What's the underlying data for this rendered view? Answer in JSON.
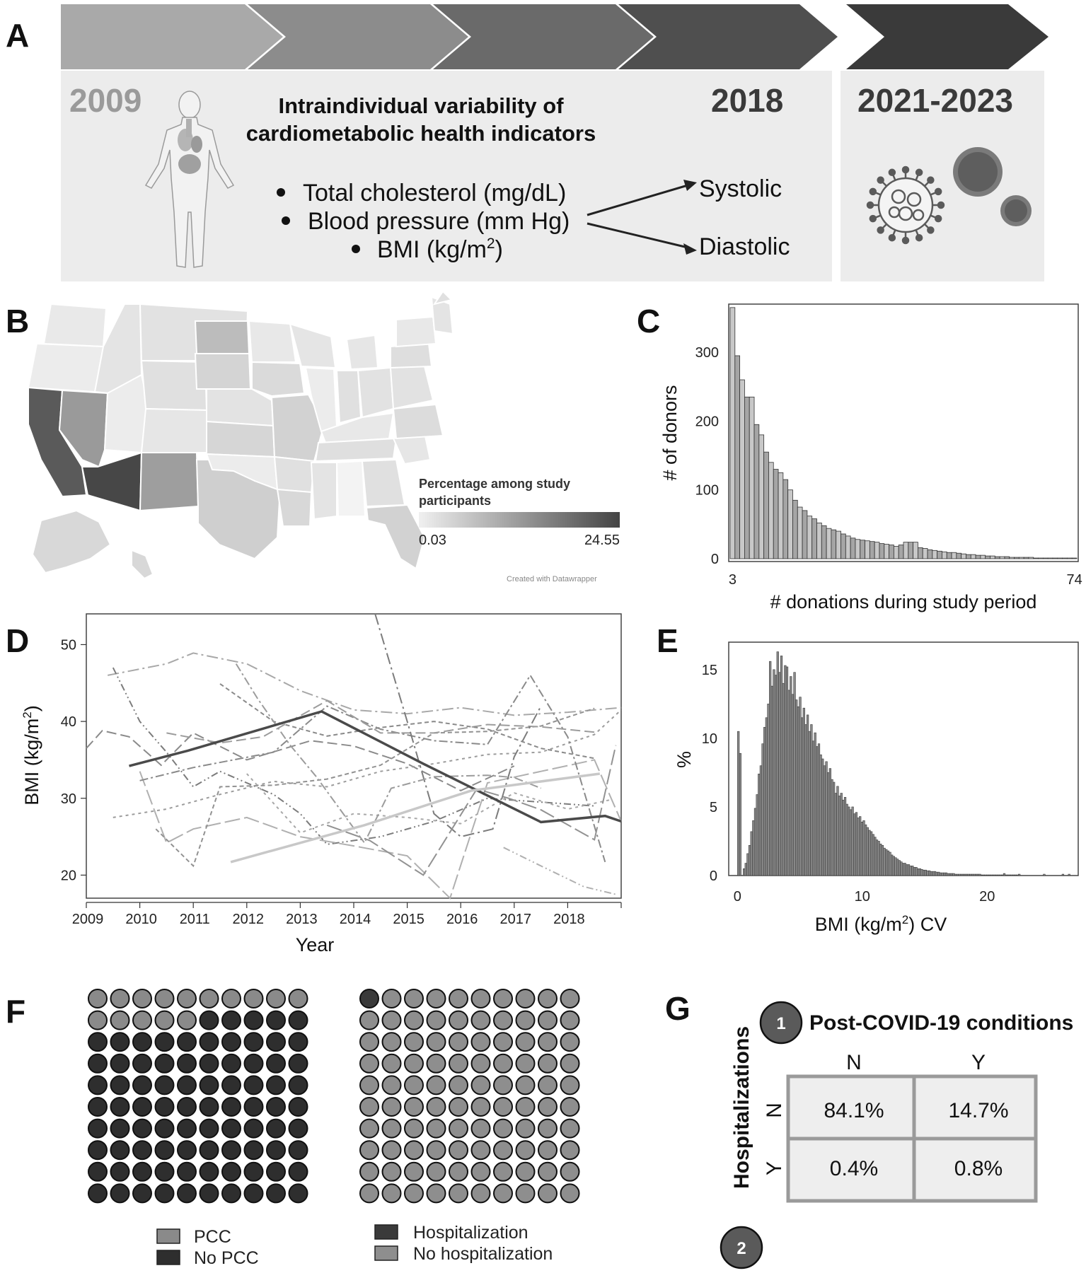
{
  "panels": {
    "A": {
      "label": "A",
      "year_start": "2009",
      "year_mid": "2018",
      "year_end": "2021-2023",
      "title_line1": "Intraindividual variability of",
      "title_line2": "cardiometabolic health indicators",
      "bullets": [
        "Total cholesterol (mg/dL)",
        "Blood pressure (mm Hg)",
        "BMI (kg/m"
      ],
      "bmi_superscript": "2",
      "bmi_close": ")",
      "bp_outcomes": [
        "Systolic",
        "Diastolic"
      ],
      "icons": [
        "human-body-icon",
        "virus-icon"
      ]
    },
    "B": {
      "label": "B",
      "legend_title_line1": "Percentage among study",
      "legend_title_line2": "participants",
      "legend_min": "0.03",
      "legend_max": "24.55",
      "credit": "Created with Datawrapper",
      "colors": {
        "low": "#f0f0f0",
        "high": "#444444"
      }
    },
    "C": {
      "label": "C"
    },
    "D": {
      "label": "D"
    },
    "E": {
      "label": "E"
    },
    "F": {
      "label": "F",
      "left_legend": [
        "PCC",
        "No PCC"
      ],
      "right_legend": [
        "Hospitalization",
        "No hospitalization"
      ],
      "left_pcc_count": 15,
      "right_hosp_count": 1,
      "colors": {
        "pcc": "#8a8a8a",
        "no_pcc": "#2e2e2e",
        "hosp": "#3a3a3a",
        "no_hosp": "#8e8e8e"
      }
    },
    "G": {
      "label": "G",
      "marker1": "1",
      "marker2": "2",
      "col_title": "Post-COVID-19 conditions",
      "row_title": "Hospitalizations",
      "col_headers": [
        "N",
        "Y"
      ],
      "row_headers": [
        "N",
        "Y"
      ],
      "cells": [
        [
          "84.1%",
          "14.7%"
        ],
        [
          "0.4%",
          "0.8%"
        ]
      ]
    }
  },
  "chart_data": [
    {
      "id": "C",
      "type": "bar",
      "xlabel": "# donations during study period",
      "ylabel": "# of donors",
      "x_tick_labels": [
        "3",
        "74"
      ],
      "y_ticks": [
        0,
        100,
        200,
        300
      ],
      "ylim": [
        0,
        370
      ],
      "x_range": [
        3,
        74
      ],
      "values": [
        365,
        295,
        260,
        235,
        235,
        195,
        180,
        155,
        140,
        130,
        125,
        115,
        100,
        85,
        75,
        70,
        62,
        58,
        52,
        48,
        44,
        42,
        40,
        36,
        33,
        30,
        28,
        27,
        26,
        25,
        24,
        22,
        21,
        20,
        18,
        20,
        24,
        24,
        24,
        16,
        15,
        13,
        12,
        11,
        10,
        9,
        9,
        8,
        7,
        6,
        6,
        5,
        5,
        4,
        4,
        3,
        3,
        3,
        2,
        2,
        2,
        2,
        2,
        1,
        1,
        1,
        1,
        1,
        1,
        1,
        1,
        1
      ],
      "bar_colors": [
        "#c8c8c8",
        "#a5a5a5"
      ]
    },
    {
      "id": "D",
      "type": "line",
      "xlabel": "Year",
      "ylabel": "BMI (kg/m",
      "ylabel_sup": "2",
      "ylabel_close": ")",
      "x_ticks": [
        "2009",
        "2010",
        "2011",
        "2012",
        "2013",
        "2014",
        "2015",
        "2016",
        "2017",
        "2018"
      ],
      "xlim": [
        2009,
        2019
      ],
      "y_ticks": [
        20,
        30,
        40,
        50
      ],
      "ylim": [
        17,
        54
      ],
      "highlight_series": [
        {
          "points": [
            [
              2009.8,
              34.2
            ],
            [
              2010.9,
              36.2
            ],
            [
              2013.4,
              41.3
            ],
            [
              2015.3,
              34.5
            ],
            [
              2017.5,
              26.9
            ],
            [
              2018.7,
              27.7
            ],
            [
              2019.0,
              27.0
            ]
          ],
          "color": "#4a4a4a",
          "width": 3.5
        },
        {
          "points": [
            [
              2011.7,
              21.7
            ],
            [
              2014.2,
              26.5
            ],
            [
              2016.2,
              31.0
            ],
            [
              2018.6,
              33.2
            ]
          ],
          "color": "#c8c8c8",
          "width": 3.5
        }
      ],
      "background_series": [
        [
          [
            2009.0,
            36.5
          ],
          [
            2009.3,
            38.8
          ],
          [
            2009.8,
            38.0
          ],
          [
            2010.4,
            34.3
          ],
          [
            2011.0,
            38.5
          ],
          [
            2012.0,
            35.0
          ],
          [
            2013.2,
            37.5
          ],
          [
            2014.0,
            36.8
          ],
          [
            2015.0,
            34.5
          ],
          [
            2016.0,
            31.0
          ],
          [
            2017.0,
            34.2
          ]
        ],
        [
          [
            2009.5,
            27.5
          ],
          [
            2010.5,
            28.6
          ],
          [
            2011.5,
            30.5
          ],
          [
            2012.5,
            32.2
          ],
          [
            2013.5,
            31.5
          ],
          [
            2014.5,
            33.5
          ],
          [
            2015.5,
            34.5
          ],
          [
            2016.5,
            35.7
          ],
          [
            2017.5,
            36.0
          ],
          [
            2018.5,
            38.3
          ],
          [
            2019.0,
            41.5
          ]
        ],
        [
          [
            2009.4,
            46.0
          ],
          [
            2010.5,
            47.5
          ],
          [
            2011.0,
            48.9
          ],
          [
            2012.0,
            47.5
          ],
          [
            2013.0,
            44.0
          ],
          [
            2014.0,
            41.5
          ],
          [
            2015.0,
            41.0
          ],
          [
            2016.0,
            41.8
          ],
          [
            2017.0,
            40.8
          ],
          [
            2018.0,
            41.2
          ],
          [
            2019.0,
            41.8
          ]
        ],
        [
          [
            2009.5,
            47.0
          ],
          [
            2010.0,
            40.0
          ],
          [
            2010.5,
            36.0
          ],
          [
            2011.0,
            31.5
          ],
          [
            2011.5,
            33.5
          ],
          [
            2012.5,
            30.5
          ],
          [
            2013.0,
            28.0
          ],
          [
            2013.5,
            24.0
          ],
          [
            2014.5,
            25.0
          ],
          [
            2015.5,
            27.0
          ],
          [
            2016.5,
            30.0
          ],
          [
            2017.5,
            29.5
          ],
          [
            2018.5,
            29.0
          ]
        ],
        [
          [
            2010.0,
            33.5
          ],
          [
            2010.5,
            24.2
          ],
          [
            2011.0,
            26.0
          ],
          [
            2012.0,
            27.5
          ],
          [
            2013.0,
            25.0
          ],
          [
            2014.0,
            23.8
          ],
          [
            2015.0,
            22.5
          ],
          [
            2015.8,
            17.0
          ],
          [
            2016.5,
            32.0
          ],
          [
            2017.5,
            33.5
          ],
          [
            2018.5,
            35.0
          ],
          [
            2019.0,
            27.0
          ]
        ],
        [
          [
            2010.3,
            26.0
          ],
          [
            2011.0,
            21.2
          ],
          [
            2011.5,
            31.5
          ],
          [
            2012.5,
            31.7
          ],
          [
            2013.5,
            32.5
          ],
          [
            2014.5,
            34.3
          ],
          [
            2015.5,
            38.5
          ],
          [
            2016.5,
            38.7
          ],
          [
            2017.5,
            39.4
          ],
          [
            2018.5,
            41.7
          ]
        ],
        [
          [
            2010.0,
            32.3
          ],
          [
            2011.0,
            34.0
          ],
          [
            2012.5,
            36.0
          ],
          [
            2013.5,
            42.0
          ],
          [
            2014.5,
            39.0
          ],
          [
            2015.5,
            37.5
          ],
          [
            2016.5,
            37.0
          ],
          [
            2017.3,
            46.0
          ],
          [
            2018.0,
            38.0
          ],
          [
            2018.7,
            21.7
          ]
        ],
        [
          [
            2010.5,
            38.5
          ],
          [
            2011.5,
            37.2
          ],
          [
            2012.3,
            38.0
          ],
          [
            2013.5,
            42.7
          ],
          [
            2014.5,
            38.5
          ],
          [
            2015.5,
            38.5
          ],
          [
            2016.5,
            39.6
          ],
          [
            2017.5,
            39.3
          ],
          [
            2018.5,
            38.6
          ]
        ],
        [
          [
            2012.0,
            33.2
          ],
          [
            2013.0,
            25.5
          ],
          [
            2014.0,
            28.0
          ],
          [
            2015.0,
            27.5
          ],
          [
            2016.0,
            26.7
          ],
          [
            2017.0,
            30.7
          ],
          [
            2018.0,
            28.6
          ],
          [
            2018.8,
            29.8
          ]
        ],
        [
          [
            2014.4,
            54.0
          ],
          [
            2015.0,
            40.0
          ],
          [
            2015.5,
            28.0
          ],
          [
            2016.0,
            25.0
          ],
          [
            2016.6,
            26.0
          ],
          [
            2017.0,
            35.4
          ],
          [
            2017.5,
            42.0
          ]
        ],
        [
          [
            2016.8,
            23.6
          ],
          [
            2017.5,
            21.2
          ],
          [
            2018.3,
            18.5
          ],
          [
            2018.9,
            17.5
          ]
        ],
        [
          [
            2013.5,
            26.5
          ],
          [
            2014.3,
            24.5
          ],
          [
            2015.3,
            20.0
          ],
          [
            2016.3,
            31.2
          ],
          [
            2016.9,
            30.0
          ],
          [
            2017.5,
            28.5
          ],
          [
            2018.5,
            24.6
          ],
          [
            2018.9,
            36.9
          ]
        ],
        [
          [
            2011.5,
            44.9
          ],
          [
            2012.5,
            40.0
          ],
          [
            2013.5,
            38.1
          ],
          [
            2014.5,
            39.2
          ],
          [
            2015.5,
            40.0
          ],
          [
            2016.5,
            39.0
          ],
          [
            2017.5,
            36.5
          ],
          [
            2018.5,
            35.2
          ]
        ],
        [
          [
            2011.8,
            47.5
          ],
          [
            2012.2,
            43.0
          ],
          [
            2012.8,
            37.0
          ],
          [
            2013.3,
            32.8
          ],
          [
            2014.2,
            24.2
          ],
          [
            2014.7,
            31.3
          ],
          [
            2015.5,
            32.8
          ],
          [
            2016.5,
            33.0
          ],
          [
            2017.0,
            32.7
          ],
          [
            2017.5,
            31.3
          ]
        ]
      ]
    },
    {
      "id": "E",
      "type": "bar",
      "xlabel": "BMI (kg/m",
      "xlabel_sup": "2",
      "xlabel_close": ") CV",
      "ylabel": "%",
      "x_ticks": [
        0,
        10,
        20
      ],
      "xlim": [
        -0.7,
        27.3
      ],
      "y_ticks": [
        0,
        5,
        10,
        15
      ],
      "ylim": [
        0,
        17
      ],
      "bin_width": 0.15,
      "values": [
        10.5,
        8.9,
        0.0,
        0.5,
        0.9,
        1.6,
        2.2,
        3.2,
        4.0,
        4.9,
        5.9,
        7.4,
        8.0,
        9.6,
        10.8,
        11.5,
        12.5,
        15.6,
        13.8,
        15.0,
        14.6,
        16.3,
        14.8,
        16.0,
        14.0,
        15.3,
        15.2,
        13.5,
        14.5,
        13.2,
        14.8,
        12.8,
        12.3,
        13.0,
        11.5,
        12.2,
        11.0,
        11.7,
        10.5,
        11.0,
        9.8,
        10.4,
        9.4,
        9.6,
        8.8,
        8.5,
        8.0,
        8.3,
        7.5,
        7.8,
        7.0,
        6.8,
        6.0,
        6.5,
        5.8,
        6.0,
        5.5,
        5.7,
        5.2,
        5.0,
        4.8,
        5.0,
        4.5,
        4.6,
        4.2,
        4.3,
        3.9,
        4.0,
        3.7,
        3.5,
        3.3,
        3.2,
        3.0,
        2.8,
        2.6,
        2.5,
        2.3,
        2.2,
        2.0,
        1.9,
        1.8,
        1.7,
        1.5,
        1.4,
        1.3,
        1.2,
        1.1,
        1.0,
        0.9,
        0.9,
        0.8,
        0.8,
        0.7,
        0.7,
        0.6,
        0.6,
        0.5,
        0.5,
        0.45,
        0.4,
        0.4,
        0.35,
        0.35,
        0.3,
        0.3,
        0.3,
        0.25,
        0.25,
        0.2,
        0.2,
        0.2,
        0.2,
        0.15,
        0.15,
        0.15,
        0.15,
        0.1,
        0.1,
        0.1,
        0.1,
        0.1,
        0.1,
        0.1,
        0.1,
        0.1,
        0.1,
        0.1,
        0.1,
        0.1,
        0.1,
        0.05,
        0.05,
        0.05,
        0.05,
        0.05,
        0.05,
        0.05,
        0.05,
        0.05,
        0.05,
        0.05,
        0.05,
        0.05,
        0.05,
        0.05,
        0.05,
        0.05,
        0.05,
        0.05,
        0.05
      ],
      "sparse_tail": [
        [
          21.3,
          0.15
        ],
        [
          22.5,
          0.1
        ],
        [
          24.5,
          0.1
        ],
        [
          26.0,
          0.1
        ],
        [
          26.5,
          0.1
        ]
      ]
    }
  ]
}
